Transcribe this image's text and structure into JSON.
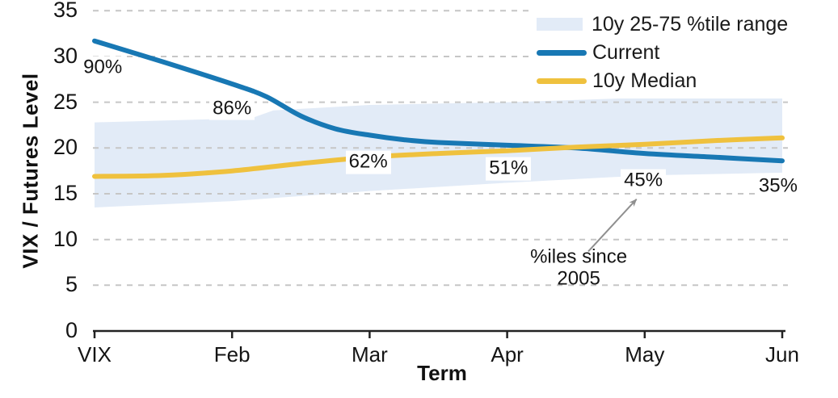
{
  "axes": {
    "x_title": "Term",
    "y_title": "VIX / Futures Level"
  },
  "legend": {
    "items": [
      {
        "label": "10y 25-75 %tile range",
        "swatch": "band"
      },
      {
        "label": "Current",
        "swatch": "line-current"
      },
      {
        "label": "10y Median",
        "swatch": "line-median"
      }
    ]
  },
  "colors": {
    "current": "#1878b4",
    "median": "#efc13e",
    "band": "#e2ebf7",
    "grid": "#c6c6c6",
    "axis": "#222222",
    "text": "#141414",
    "arrow": "#8f8f8f"
  },
  "chart_data": {
    "type": "line",
    "title": "",
    "xlabel": "Term",
    "ylabel": "VIX / Futures Level",
    "categories": [
      "VIX",
      "Feb",
      "Mar",
      "Apr",
      "May",
      "Jun"
    ],
    "y_ticks": [
      0,
      5,
      10,
      15,
      20,
      25,
      30,
      35
    ],
    "ylim": [
      0,
      35
    ],
    "grid": "horizontal-dashed",
    "legend_position": "top-right",
    "series": [
      {
        "name": "Current",
        "color": "#1878b4",
        "values": [
          31.7,
          27.0,
          21.4,
          20.3,
          19.4,
          18.6
        ],
        "shape": [
          [
            0,
            31.7
          ],
          [
            0.5,
            29.4
          ],
          [
            1,
            27.0
          ],
          [
            1.25,
            25.6
          ],
          [
            1.5,
            23.5
          ],
          [
            1.75,
            22.1
          ],
          [
            2,
            21.4
          ],
          [
            2.25,
            20.9
          ],
          [
            2.5,
            20.6
          ],
          [
            3,
            20.3
          ],
          [
            3.5,
            20.0
          ],
          [
            4,
            19.4
          ],
          [
            4.5,
            19.0
          ],
          [
            5,
            18.6
          ]
        ]
      },
      {
        "name": "10y Median",
        "color": "#efc13e",
        "values": [
          16.9,
          17.5,
          19.0,
          19.7,
          20.4,
          21.1
        ],
        "shape": [
          [
            0,
            16.9
          ],
          [
            0.5,
            17.0
          ],
          [
            1,
            17.5
          ],
          [
            1.5,
            18.3
          ],
          [
            2,
            19.0
          ],
          [
            2.5,
            19.4
          ],
          [
            3,
            19.7
          ],
          [
            3.5,
            20.1
          ],
          [
            4,
            20.4
          ],
          [
            4.5,
            20.8
          ],
          [
            5,
            21.1
          ]
        ]
      }
    ],
    "band": {
      "name": "10y 25-75 %tile range",
      "color": "#e2ebf7",
      "top": [
        22.8,
        23.2,
        24.7,
        25.0,
        25.5,
        26.1
      ],
      "bottom": [
        13.5,
        14.2,
        15.3,
        16.2,
        17.0,
        17.3
      ],
      "top_shape": [
        [
          0,
          22.8
        ],
        [
          1,
          23.2
        ],
        [
          1.15,
          23.3
        ],
        [
          1.3,
          24.1
        ],
        [
          2,
          24.7
        ],
        [
          3,
          25.0
        ],
        [
          4,
          25.5
        ],
        [
          5,
          26.1
        ]
      ],
      "bottom_shape": [
        [
          0,
          13.5
        ],
        [
          1,
          14.2
        ],
        [
          2,
          15.3
        ],
        [
          3,
          16.2
        ],
        [
          4,
          17.0
        ],
        [
          5,
          17.3
        ]
      ]
    },
    "annotations": [
      {
        "text": "90%",
        "t": 0.06,
        "v": 28.8
      },
      {
        "text": "86%",
        "t": 1.0,
        "v": 24.3
      },
      {
        "text": "62%",
        "t": 1.99,
        "v": 18.4
      },
      {
        "text": "51%",
        "t": 3.01,
        "v": 17.7
      },
      {
        "text": "45%",
        "t": 3.99,
        "v": 16.4
      },
      {
        "text": "35%",
        "t": 4.97,
        "v": 15.8
      }
    ],
    "note": {
      "lines": [
        "%iles since",
        "2005"
      ],
      "t": 3.52,
      "v": 6.9,
      "arrow": {
        "from_t": 3.59,
        "from_v": 8.7,
        "to_t": 3.94,
        "to_v": 14.4,
        "color": "#8f8f8f"
      }
    }
  }
}
